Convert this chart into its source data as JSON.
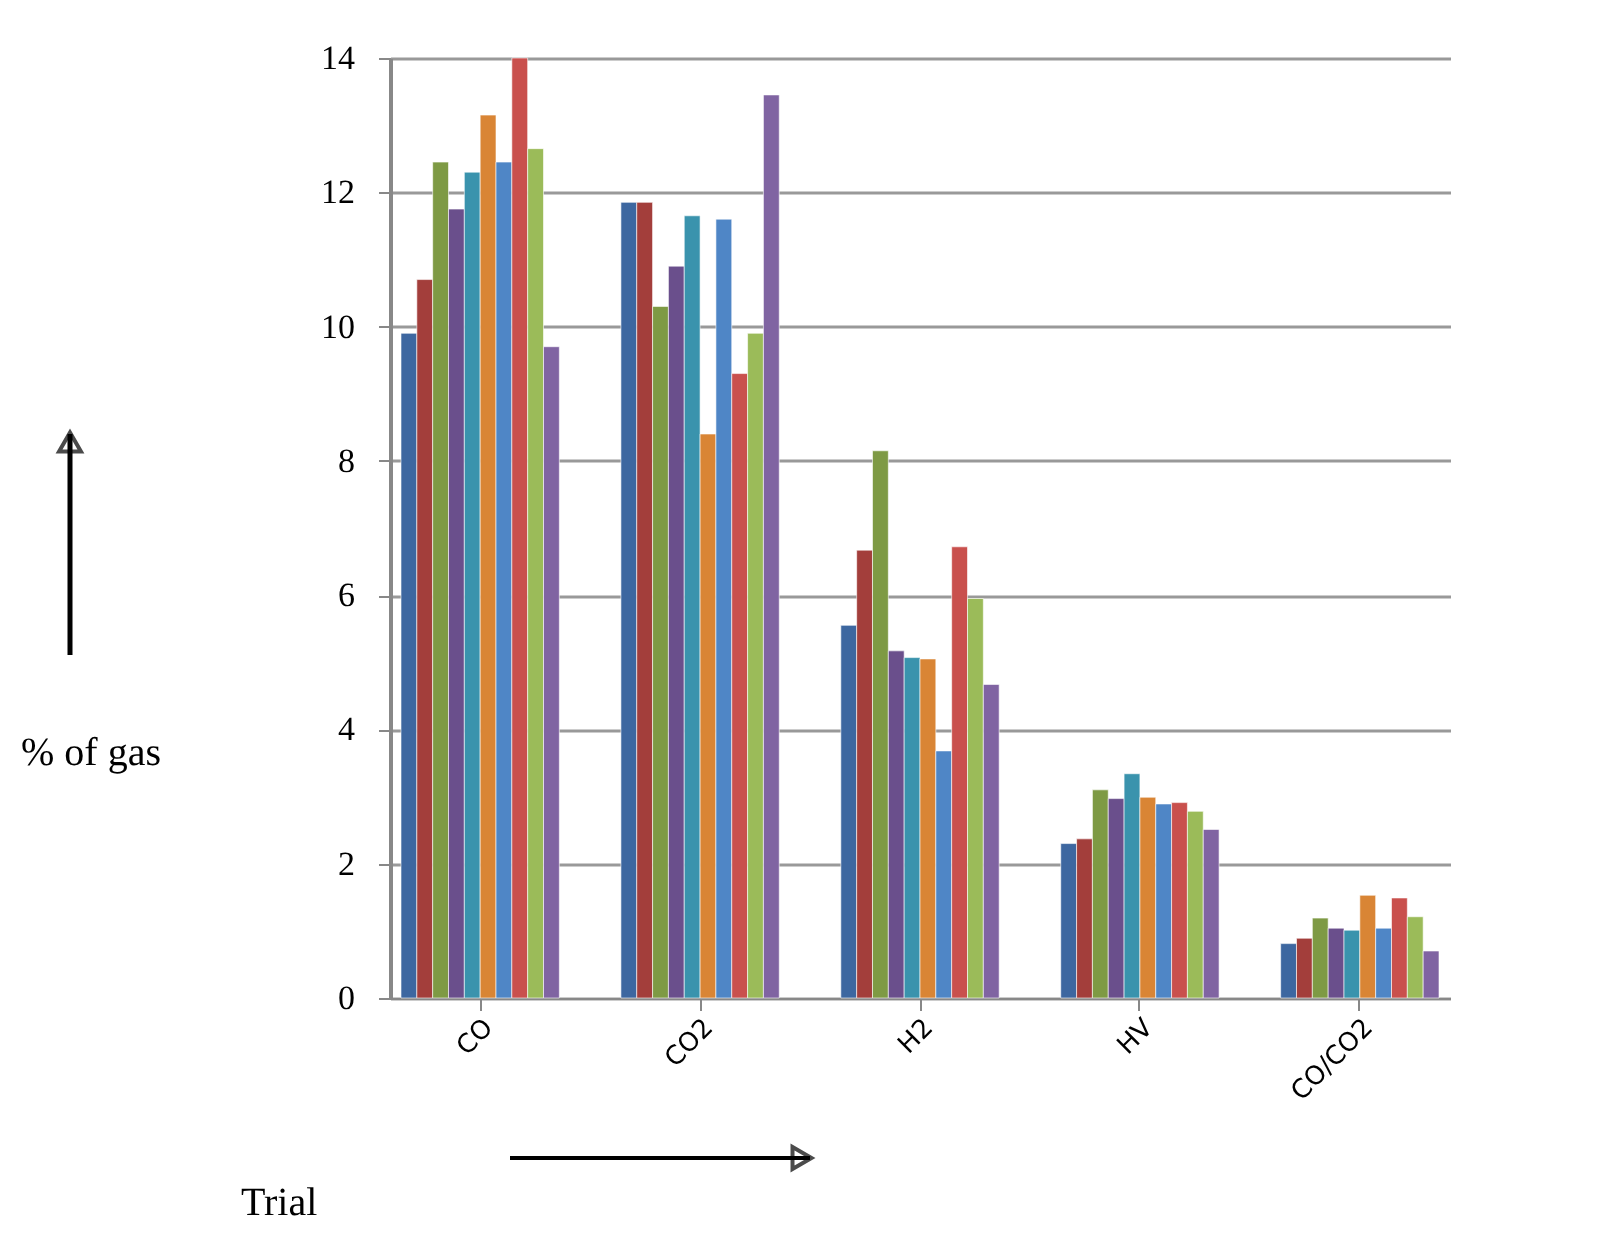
{
  "chart_data": {
    "type": "bar",
    "xlabel": "Trial",
    "ylabel": "% of gas",
    "categories": [
      "CO",
      "CO2",
      "H2",
      "HV",
      "CO/CO2"
    ],
    "series": [
      {
        "color": "#3d67a0",
        "values": [
          9.9,
          11.85,
          5.55,
          2.3,
          0.81
        ]
      },
      {
        "color": "#a33e3b",
        "values": [
          10.7,
          11.85,
          6.67,
          2.37,
          0.89
        ]
      },
      {
        "color": "#7e9a44",
        "values": [
          12.45,
          10.3,
          8.15,
          3.1,
          1.19
        ]
      },
      {
        "color": "#6a4f8c",
        "values": [
          11.75,
          10.9,
          5.17,
          2.97,
          1.04
        ]
      },
      {
        "color": "#3a93ad",
        "values": [
          12.3,
          11.65,
          5.07,
          3.34,
          1.01
        ]
      },
      {
        "color": "#d98535",
        "values": [
          13.15,
          8.4,
          5.05,
          2.99,
          1.53
        ]
      },
      {
        "color": "#4f86c6",
        "values": [
          12.45,
          11.6,
          3.68,
          2.89,
          1.04
        ]
      },
      {
        "color": "#c9504d",
        "values": [
          14.0,
          9.3,
          6.72,
          2.91,
          1.49
        ]
      },
      {
        "color": "#9bbb59",
        "values": [
          12.65,
          9.9,
          5.95,
          2.78,
          1.21
        ]
      },
      {
        "color": "#8064a2",
        "values": [
          9.7,
          13.45,
          4.67,
          2.51,
          0.7
        ]
      }
    ],
    "ylim": [
      0,
      14
    ],
    "yticks": [
      0,
      2,
      4,
      6,
      8,
      10,
      12,
      14
    ],
    "grid": "y",
    "legend": false
  }
}
